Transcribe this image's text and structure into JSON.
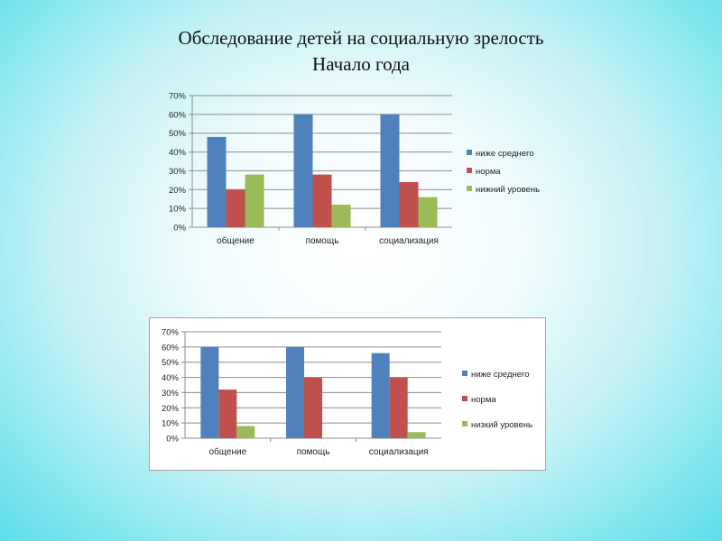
{
  "title": {
    "line1": "Обследование детей на социальную зрелость",
    "line2": "Начало года"
  },
  "chart_data": [
    {
      "type": "bar",
      "categories": [
        "общение",
        "помощь",
        "социализация"
      ],
      "series": [
        {
          "name": "ниже среднего",
          "values": [
            48,
            60,
            60
          ],
          "color": "#4f81bd"
        },
        {
          "name": "норма",
          "values": [
            20,
            28,
            24
          ],
          "color": "#c0504d"
        },
        {
          "name": "нижний уровень",
          "values": [
            28,
            12,
            16
          ],
          "color": "#9bbb59"
        }
      ],
      "yticks": [
        "0%",
        "10%",
        "20%",
        "30%",
        "40%",
        "50%",
        "60%",
        "70%"
      ],
      "ylim": [
        0,
        70
      ],
      "grid": true,
      "legend": "right"
    },
    {
      "type": "bar",
      "categories": [
        "общение",
        "помощь",
        "социализация"
      ],
      "series": [
        {
          "name": "ниже среднего",
          "values": [
            60,
            60,
            56
          ],
          "color": "#4f81bd"
        },
        {
          "name": "норма",
          "values": [
            32,
            40,
            40
          ],
          "color": "#c0504d"
        },
        {
          "name": "низкий уровень",
          "values": [
            8,
            0,
            4
          ],
          "color": "#9bbb59"
        }
      ],
      "yticks": [
        "0%",
        "10%",
        "20%",
        "30%",
        "40%",
        "50%",
        "60%",
        "70%"
      ],
      "ylim": [
        0,
        70
      ],
      "grid": true,
      "legend": "right"
    }
  ]
}
